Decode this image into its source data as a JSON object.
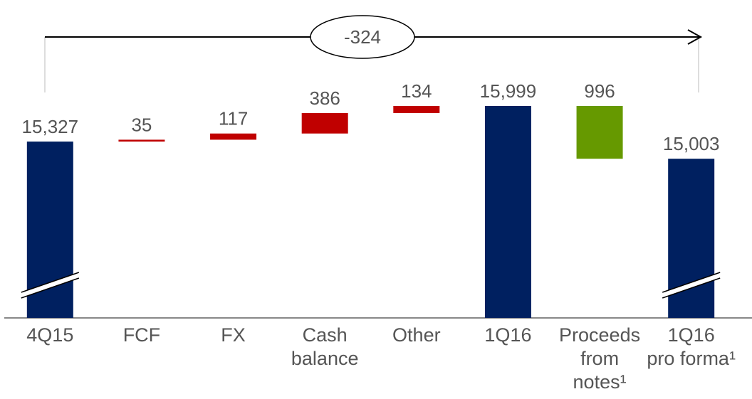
{
  "chart_data": {
    "type": "waterfall",
    "categories": [
      "4Q15",
      "FCF",
      "FX",
      "Cash\nbalance",
      "Other",
      "1Q16",
      "Proceeds\nfrom\nnotes¹",
      "1Q16\npro forma¹"
    ],
    "values": [
      15327,
      35,
      117,
      386,
      134,
      15999,
      996,
      15003
    ],
    "value_labels": [
      "15,327",
      "35",
      "117",
      "386",
      "134",
      "15,999",
      "996",
      "15,003"
    ],
    "measure": [
      "total",
      "increase",
      "increase",
      "increase",
      "increase",
      "total",
      "decrease",
      "total"
    ],
    "colors": {
      "total": "#002060",
      "increase": "#c00000",
      "decrease": "#669900"
    },
    "ylim": [
      12000,
      17300
    ],
    "annotation": "-324"
  }
}
